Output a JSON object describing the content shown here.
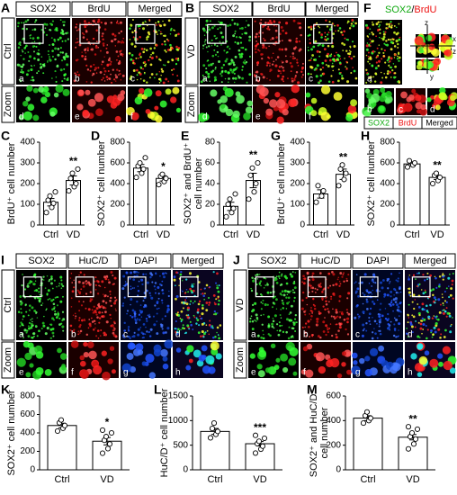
{
  "figure": {
    "A": {
      "label": "A",
      "channels": [
        "SOX2",
        "BrdU",
        "Merged"
      ],
      "group": "Ctrl",
      "zoom": "Zoom",
      "sublabels": [
        "a",
        "b",
        "c",
        "d",
        "e",
        "f"
      ]
    },
    "B": {
      "label": "B",
      "channels": [
        "SOX2",
        "BrdU",
        "Merged"
      ],
      "group": "VD",
      "zoom": "Zoom",
      "sublabels": [
        "a",
        "b",
        "c",
        "d",
        "e",
        "f"
      ]
    },
    "F": {
      "label": "F",
      "title_parts": [
        "SOX2",
        "/",
        "BrdU"
      ],
      "sublabels": [
        "a",
        "b",
        "c",
        "d"
      ],
      "axes": [
        "z",
        "x",
        "z",
        "y"
      ],
      "legend": [
        "SOX2",
        "BrdU",
        "Merged"
      ]
    },
    "I": {
      "label": "I",
      "channels": [
        "SOX2",
        "HuC/D",
        "DAPI",
        "Merged"
      ],
      "group": "Ctrl",
      "zoom": "Zoom",
      "sublabels": [
        "a",
        "b",
        "c",
        "d",
        "e",
        "f",
        "g",
        "h"
      ]
    },
    "J": {
      "label": "J",
      "channels": [
        "SOX2",
        "HuC/D",
        "DAPI",
        "Merged"
      ],
      "group": "VD",
      "zoom": "Zoom",
      "sublabels": [
        "a",
        "b",
        "c",
        "d",
        "e",
        "f",
        "g",
        "h"
      ]
    }
  },
  "chart_data": [
    {
      "panel": "C",
      "type": "bar",
      "ylabel": "BrdU⁺ cell number",
      "categories": [
        "Ctrl",
        "VD"
      ],
      "values": [
        110,
        215
      ],
      "errors": [
        18,
        22
      ],
      "points": [
        [
          60,
          85,
          105,
          120,
          140,
          160
        ],
        [
          165,
          185,
          200,
          225,
          250,
          270
        ]
      ],
      "significance": "**",
      "color": "#ffffff",
      "ylim": [
        0,
        400
      ],
      "yticks": [
        0,
        100,
        200,
        300,
        400
      ]
    },
    {
      "panel": "D",
      "type": "bar",
      "ylabel": "SOX2⁺ cell number",
      "categories": [
        "Ctrl",
        "VD"
      ],
      "values": [
        550,
        450
      ],
      "errors": [
        35,
        25
      ],
      "points": [
        [
          460,
          500,
          540,
          570,
          600,
          650
        ],
        [
          390,
          420,
          450,
          470,
          490
        ]
      ],
      "significance": "*",
      "color": "#ffffff",
      "ylim": [
        0,
        800
      ],
      "yticks": [
        0,
        200,
        400,
        600,
        800
      ]
    },
    {
      "panel": "E",
      "type": "bar",
      "ylabel": [
        "SOX2⁺ and BrdU⁺",
        "cell number"
      ],
      "categories": [
        "Ctrl",
        "VD"
      ],
      "values": [
        18,
        43
      ],
      "errors": [
        4,
        7
      ],
      "points": [
        [
          8,
          12,
          16,
          20,
          25,
          30
        ],
        [
          25,
          32,
          40,
          48,
          55,
          60
        ]
      ],
      "significance": "**",
      "color": "#ffffff",
      "ylim": [
        0,
        80
      ],
      "yticks": [
        0,
        20,
        40,
        60,
        80
      ]
    },
    {
      "panel": "G",
      "type": "bar",
      "ylabel": "BrdU⁺ cell number",
      "categories": [
        "Ctrl",
        "VD"
      ],
      "values": [
        150,
        245
      ],
      "errors": [
        20,
        25
      ],
      "points": [
        [
          110,
          140,
          165,
          190
        ],
        [
          190,
          220,
          250,
          270,
          290
        ]
      ],
      "significance": "**",
      "color": "#ffffff",
      "ylim": [
        0,
        400
      ],
      "yticks": [
        0,
        100,
        200,
        300,
        400
      ]
    },
    {
      "panel": "H",
      "type": "bar",
      "ylabel": "SOX2⁺ cell number",
      "categories": [
        "Ctrl",
        "VD"
      ],
      "values": [
        590,
        460
      ],
      "errors": [
        20,
        20
      ],
      "points": [
        [
          560,
          580,
          600,
          620
        ],
        [
          400,
          430,
          460,
          480,
          500
        ]
      ],
      "significance": "**",
      "color": "#ffffff",
      "ylim": [
        0,
        800
      ],
      "yticks": [
        0,
        200,
        400,
        600,
        800
      ]
    },
    {
      "panel": "K",
      "type": "bar",
      "ylabel": "SOX2⁺ cell number",
      "categories": [
        "Ctrl",
        "VD"
      ],
      "values": [
        480,
        310
      ],
      "errors": [
        25,
        40
      ],
      "points": [
        [
          420,
          450,
          480,
          510,
          540
        ],
        [
          180,
          230,
          280,
          320,
          360,
          400,
          430
        ]
      ],
      "significance": "*",
      "color": "#ffffff",
      "ylim": [
        0,
        800
      ],
      "yticks": [
        0,
        200,
        400,
        600,
        800
      ]
    },
    {
      "panel": "L",
      "type": "bar",
      "ylabel": "HuC/D⁺ cell number",
      "categories": [
        "Ctrl",
        "VD"
      ],
      "values": [
        780,
        530
      ],
      "errors": [
        60,
        45
      ],
      "points": [
        [
          650,
          720,
          780,
          840,
          950
        ],
        [
          340,
          420,
          480,
          530,
          580,
          640,
          700
        ]
      ],
      "significance": "***",
      "color": "#ffffff",
      "ylim": [
        0,
        1500
      ],
      "yticks": [
        0,
        500,
        1000,
        1500
      ]
    },
    {
      "panel": "M",
      "type": "bar",
      "ylabel": [
        "SOX2⁺ and HuC/D⁺",
        "cell number"
      ],
      "categories": [
        "Ctrl",
        "VD"
      ],
      "values": [
        420,
        265
      ],
      "errors": [
        20,
        22
      ],
      "points": [
        [
          380,
          400,
          420,
          440,
          470
        ],
        [
          170,
          210,
          250,
          270,
          300,
          330,
          350
        ]
      ],
      "significance": "**",
      "color": "#ffffff",
      "ylim": [
        0,
        600
      ],
      "yticks": [
        0,
        200,
        400,
        600
      ]
    }
  ]
}
